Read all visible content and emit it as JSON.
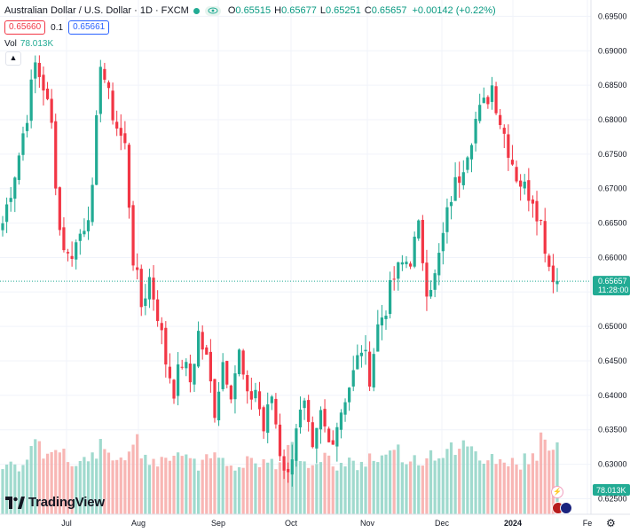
{
  "header": {
    "title": "Australian Dollar / U.S. Dollar · 1D · FXCM",
    "open_label": "O",
    "open": "0.65515",
    "high_label": "H",
    "high": "0.65677",
    "low_label": "L",
    "low": "0.65251",
    "close_label": "C",
    "close": "0.65657",
    "change": "+0.00142 (+0.22%)",
    "sell_price": "0.65660",
    "spread": "0.1",
    "buy_price": "0.65661",
    "volume_label": "Vol",
    "volume_value": "78.013K",
    "collapse_icon": "chevron-up-icon"
  },
  "colors": {
    "up": "#22ab94",
    "down": "#f23645",
    "up_vol": "#8fd3c6",
    "down_vol": "#f7a9a7",
    "grid": "#f0f3fa"
  },
  "price_axis": {
    "labels": [
      "0.69500",
      "0.69000",
      "0.68500",
      "0.68000",
      "0.67500",
      "0.67000",
      "0.66500",
      "0.66000",
      "0.65500",
      "0.65000",
      "0.64500",
      "0.64000",
      "0.63500",
      "0.63000",
      "0.62500"
    ],
    "min": 0.623,
    "max": 0.6966
  },
  "current_price": {
    "value": 0.65657,
    "label": "0.65657",
    "countdown": "11:28:00"
  },
  "volume_badge": "78.013K",
  "time_axis": {
    "labels": [
      "Jul",
      "Aug",
      "Sep",
      "Oct",
      "Nov",
      "Dec",
      "2024",
      "Fe"
    ]
  },
  "branding": {
    "name": "TradingView",
    "logo_icon": "tradingview-logo-icon"
  },
  "icons": {
    "settings": "gear-icon",
    "flash": "lightning-icon",
    "flags": "country-flags-icon"
  },
  "chart_data": {
    "type": "candlestick",
    "title": "Australian Dollar / U.S. Dollar · 1D · FXCM",
    "x_labels": [
      "Jul",
      "Aug",
      "Sep",
      "Oct",
      "Nov",
      "Dec",
      "2024",
      "Fe"
    ],
    "ylim": [
      0.623,
      0.6966
    ],
    "key_points": [
      0.665,
      0.67,
      0.675,
      0.681,
      0.688,
      0.685,
      0.679,
      0.664,
      0.66,
      0.662,
      0.665,
      0.669,
      0.689,
      0.683,
      0.679,
      0.676,
      0.66,
      0.653,
      0.657,
      0.652,
      0.645,
      0.641,
      0.645,
      0.642,
      0.649,
      0.645,
      0.638,
      0.645,
      0.641,
      0.646,
      0.639,
      0.641,
      0.635,
      0.64,
      0.632,
      0.628,
      0.636,
      0.638,
      0.631,
      0.637,
      0.633,
      0.636,
      0.64,
      0.643,
      0.647,
      0.643,
      0.65,
      0.653,
      0.657,
      0.659,
      0.66,
      0.664,
      0.656,
      0.657,
      0.663,
      0.669,
      0.672,
      0.676,
      0.68,
      0.682,
      0.685,
      0.68,
      0.676,
      0.672,
      0.67,
      0.669,
      0.665,
      0.659,
      0.6566
    ],
    "volume_scale": [
      0.55,
      0.62,
      0.5,
      0.7,
      0.8,
      0.58,
      0.65,
      0.72,
      0.6,
      0.55,
      0.68,
      0.74,
      0.8,
      0.62,
      0.66,
      0.7,
      0.9,
      0.72,
      0.6,
      0.58,
      0.64,
      0.7,
      0.66,
      0.62,
      0.5,
      0.6,
      0.68,
      0.58,
      0.5,
      0.55,
      0.66,
      0.48,
      0.62,
      0.55,
      0.68,
      0.75,
      0.6,
      0.55,
      0.5,
      0.62,
      0.6,
      0.52,
      0.58,
      0.5,
      0.54,
      0.62,
      0.6,
      0.66,
      0.7,
      0.58,
      0.62,
      0.6,
      0.64,
      0.7,
      0.66,
      0.8,
      0.85,
      0.72,
      0.68,
      0.6,
      0.62,
      0.58,
      0.55,
      0.5,
      0.62,
      0.66,
      1.0,
      0.7,
      0.78
    ]
  }
}
